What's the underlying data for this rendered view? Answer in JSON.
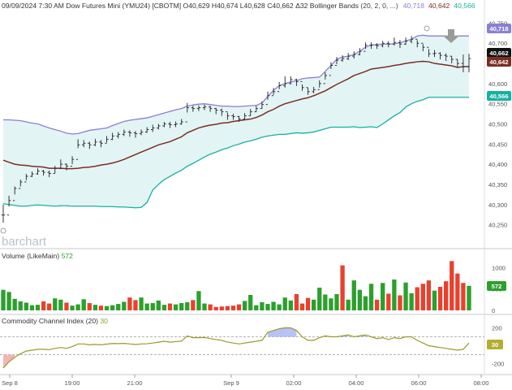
{
  "header": {
    "title": "09/09/2024 7:30 AM Dow Futures Mini (YMU24) [CBOTM] O40,629 H40,674 L40,628 C40,662 Δ32 Bollinger Bands",
    "bb_params": "(20, 2, 0, ...)",
    "bb_upper_value": "40,718",
    "bb_mid_value": "40,642",
    "bb_lower_value": "40,566"
  },
  "price_axis": {
    "ticks": [
      "40,750",
      "40,700",
      "40,650",
      "40,600",
      "40,550",
      "40,500",
      "40,450",
      "40,400",
      "40,350",
      "40,300",
      "40,250"
    ],
    "last_price_badge": "40,662",
    "upper_badge": "40,718",
    "mid_badge": "40,642",
    "lower_badge": "40,566"
  },
  "watermark": "barchart",
  "volume": {
    "title": "Volume",
    "study": "(LikeMain)",
    "last": "572",
    "ticks": [
      "1000",
      "500",
      "0"
    ],
    "badge": "572"
  },
  "cci": {
    "title": "Commodity Channel Index",
    "params": "(20)",
    "last": "30",
    "ticks": [
      "200",
      "0",
      "-200"
    ],
    "badge": "30"
  },
  "time_axis": {
    "labels": [
      "Sep 8",
      "19:00",
      "21:00",
      "Sep 9",
      "02:00",
      "04:00",
      "06:00",
      "08:00"
    ]
  },
  "colors": {
    "up": "#2ca02c",
    "down": "#e8412e",
    "bb_upper": "#8a7fd6",
    "bb_mid": "#7a2e22",
    "bb_lower": "#16b0a0",
    "bb_fill": "#e3f4f5",
    "cci_line": "#9a9a2a",
    "cci_pos": "#a9b9f2",
    "cci_neg": "#f2a8a8",
    "last_price": "#111111",
    "down_arrow": "#9a9a9a"
  },
  "chart_data": {
    "type": "ohlc",
    "n_bars": 82,
    "price_ylim": [
      40225,
      40775
    ],
    "close": [
      40274,
      40310,
      40340,
      40356,
      40370,
      40376,
      40383,
      40380,
      40377,
      40390,
      40400,
      40395,
      40412,
      40448,
      40452,
      40448,
      40455,
      40452,
      40462,
      40470,
      40474,
      40480,
      40478,
      40476,
      40480,
      40486,
      40490,
      40495,
      40500,
      40498,
      40500,
      40505,
      40540,
      40538,
      40540,
      40542,
      40538,
      40534,
      40530,
      40520,
      40518,
      40512,
      40520,
      40530,
      40538,
      40548,
      40570,
      40580,
      40595,
      40600,
      40610,
      40605,
      40590,
      40580,
      40585,
      40600,
      40620,
      40645,
      40658,
      40662,
      40668,
      40672,
      40680,
      40695,
      40695,
      40694,
      40700,
      40698,
      40702,
      40698,
      40705,
      40710,
      40700,
      40690,
      40674,
      40675,
      40670,
      40668,
      40660,
      40650,
      40642,
      40662
    ],
    "range_high": [
      40300,
      40322,
      40345,
      40362,
      40376,
      40382,
      40390,
      40386,
      40384,
      40396,
      40412,
      40402,
      40420,
      40462,
      40460,
      40456,
      40463,
      40460,
      40470,
      40478,
      40480,
      40486,
      40484,
      40482,
      40486,
      40492,
      40498,
      40500,
      40505,
      40505,
      40506,
      40512,
      40552,
      40545,
      40546,
      40548,
      40545,
      40540,
      40538,
      40528,
      40525,
      40520,
      40527,
      40537,
      40545,
      40556,
      40580,
      40589,
      40604,
      40618,
      40618,
      40612,
      40598,
      40590,
      40592,
      40608,
      40628,
      40653,
      40666,
      40670,
      40676,
      40680,
      40688,
      40702,
      40702,
      40700,
      40706,
      40705,
      40714,
      40708,
      40714,
      40718,
      40708,
      40698,
      40686,
      40683,
      40678,
      40675,
      40668,
      40660,
      40672,
      40674
    ],
    "range_low": [
      40255,
      40295,
      40325,
      40345,
      40360,
      40368,
      40374,
      40372,
      40368,
      40378,
      40388,
      40385,
      40400,
      40440,
      40442,
      40438,
      40445,
      40442,
      40454,
      40460,
      40464,
      40470,
      40468,
      40466,
      40472,
      40478,
      40480,
      40486,
      40492,
      40490,
      40492,
      40498,
      40528,
      40530,
      40532,
      40534,
      40530,
      40524,
      40520,
      40510,
      40510,
      40505,
      40512,
      40520,
      40530,
      40538,
      40560,
      40572,
      40586,
      40590,
      40598,
      40594,
      40582,
      40572,
      40576,
      40590,
      40610,
      40636,
      40648,
      40654,
      40658,
      40662,
      40670,
      40686,
      40686,
      40686,
      40690,
      40690,
      40694,
      40688,
      40696,
      40700,
      40690,
      40680,
      40666,
      40666,
      40660,
      40656,
      40650,
      40640,
      40628,
      40628
    ],
    "bb_upper": [
      40510,
      40510,
      40509,
      40508,
      40505,
      40502,
      40500,
      40495,
      40490,
      40486,
      40482,
      40477,
      40475,
      40476,
      40480,
      40484,
      40486,
      40488,
      40490,
      40496,
      40501,
      40506,
      40509,
      40511,
      40513,
      40515,
      40519,
      40523,
      40527,
      40531,
      40535,
      40538,
      40544,
      40547,
      40549,
      40550,
      40548,
      40546,
      40544,
      40544,
      40543,
      40543,
      40544,
      40545,
      40546,
      40552,
      40568,
      40583,
      40595,
      40600,
      40604,
      40607,
      40612,
      40614,
      40615,
      40616,
      40630,
      40645,
      40660,
      40666,
      40668,
      40672,
      40680,
      40690,
      40696,
      40697,
      40698,
      40698,
      40699,
      40701,
      40706,
      40710,
      40718,
      40720,
      40718,
      40718,
      40718,
      40718,
      40717,
      40718,
      40718,
      40718
    ],
    "bb_mid": [
      40410,
      40405,
      40400,
      40398,
      40397,
      40395,
      40394,
      40393,
      40390,
      40390,
      40390,
      40389,
      40389,
      40390,
      40392,
      40393,
      40395,
      40398,
      40400,
      40403,
      40407,
      40412,
      40418,
      40424,
      40430,
      40436,
      40442,
      40448,
      40452,
      40456,
      40462,
      40468,
      40478,
      40484,
      40490,
      40494,
      40497,
      40499,
      40502,
      40503,
      40506,
      40508,
      40510,
      40512,
      40516,
      40522,
      40530,
      40536,
      40544,
      40550,
      40554,
      40558,
      40562,
      40565,
      40570,
      40576,
      40582,
      40590,
      40598,
      40605,
      40612,
      40620,
      40625,
      40630,
      40636,
      40638,
      40640,
      40642,
      40645,
      40647,
      40650,
      40652,
      40654,
      40655,
      40654,
      40650,
      40648,
      40646,
      40644,
      40640,
      40642,
      40642
    ],
    "bb_lower": [
      40302,
      40300,
      40298,
      40296,
      40296,
      40298,
      40299,
      40298,
      40297,
      40296,
      40297,
      40297,
      40296,
      40296,
      40296,
      40296,
      40296,
      40295,
      40295,
      40295,
      40294,
      40294,
      40293,
      40292,
      40293,
      40305,
      40336,
      40350,
      40362,
      40370,
      40378,
      40385,
      40395,
      40402,
      40410,
      40418,
      40425,
      40430,
      40436,
      40440,
      40446,
      40450,
      40455,
      40458,
      40462,
      40467,
      40470,
      40472,
      40474,
      40474,
      40476,
      40478,
      40477,
      40478,
      40480,
      40484,
      40488,
      40492,
      40492,
      40492,
      40492,
      40493,
      40491,
      40492,
      40493,
      40491,
      40500,
      40510,
      40520,
      40528,
      40542,
      40550,
      40556,
      40560,
      40566,
      40566,
      40566,
      40566,
      40566,
      40566,
      40566,
      40566
    ],
    "volume_ylim": [
      0,
      1100
    ],
    "volume": [
      480,
      430,
      270,
      210,
      180,
      120,
      130,
      210,
      160,
      280,
      250,
      180,
      110,
      140,
      260,
      170,
      130,
      110,
      100,
      120,
      150,
      200,
      300,
      240,
      300,
      160,
      170,
      230,
      130,
      160,
      140,
      170,
      190,
      240,
      450,
      160,
      140,
      80,
      90,
      100,
      110,
      140,
      220,
      360,
      120,
      190,
      150,
      200,
      140,
      300,
      230,
      380,
      160,
      290,
      250,
      530,
      370,
      280,
      380,
      1050,
      250,
      700,
      480,
      330,
      620,
      250,
      640,
      390,
      720,
      350,
      650,
      400,
      540,
      620,
      700,
      460,
      550,
      680,
      1150,
      860,
      640,
      572
    ],
    "volume_color": [
      "up",
      "up",
      "up",
      "up",
      "up",
      "up",
      "up",
      "down",
      "down",
      "up",
      "up",
      "down",
      "up",
      "up",
      "up",
      "down",
      "up",
      "down",
      "up",
      "up",
      "up",
      "up",
      "down",
      "down",
      "up",
      "up",
      "up",
      "up",
      "up",
      "down",
      "up",
      "up",
      "up",
      "down",
      "up",
      "up",
      "down",
      "down",
      "down",
      "down",
      "down",
      "down",
      "up",
      "up",
      "up",
      "up",
      "up",
      "up",
      "up",
      "up",
      "up",
      "down",
      "down",
      "down",
      "up",
      "up",
      "up",
      "up",
      "up",
      "down",
      "up",
      "up",
      "up",
      "up",
      "up",
      "down",
      "up",
      "down",
      "up",
      "down",
      "up",
      "up",
      "down",
      "down",
      "down",
      "up",
      "down",
      "down",
      "down",
      "down",
      "down",
      "up"
    ],
    "cci_ylim": [
      -250,
      250
    ],
    "cci": [
      -250,
      -180,
      -130,
      -90,
      -60,
      -50,
      -40,
      -40,
      -45,
      -30,
      -20,
      -30,
      -10,
      20,
      20,
      10,
      15,
      10,
      18,
      25,
      24,
      26,
      20,
      14,
      20,
      22,
      30,
      40,
      50,
      40,
      46,
      52,
      110,
      90,
      90,
      92,
      80,
      70,
      60,
      40,
      30,
      20,
      30,
      40,
      50,
      60,
      150,
      170,
      190,
      200,
      200,
      170,
      100,
      60,
      60,
      90,
      110,
      100,
      100,
      110,
      120,
      100,
      110,
      120,
      100,
      80,
      90,
      70,
      90,
      80,
      100,
      100,
      60,
      30,
      0,
      -10,
      -20,
      -30,
      -40,
      -50,
      -40,
      30
    ],
    "time_labels": [
      "Sep 8",
      "19:00",
      "21:00",
      "Sep 9",
      "02:00",
      "04:00",
      "06:00",
      "08:00"
    ]
  }
}
